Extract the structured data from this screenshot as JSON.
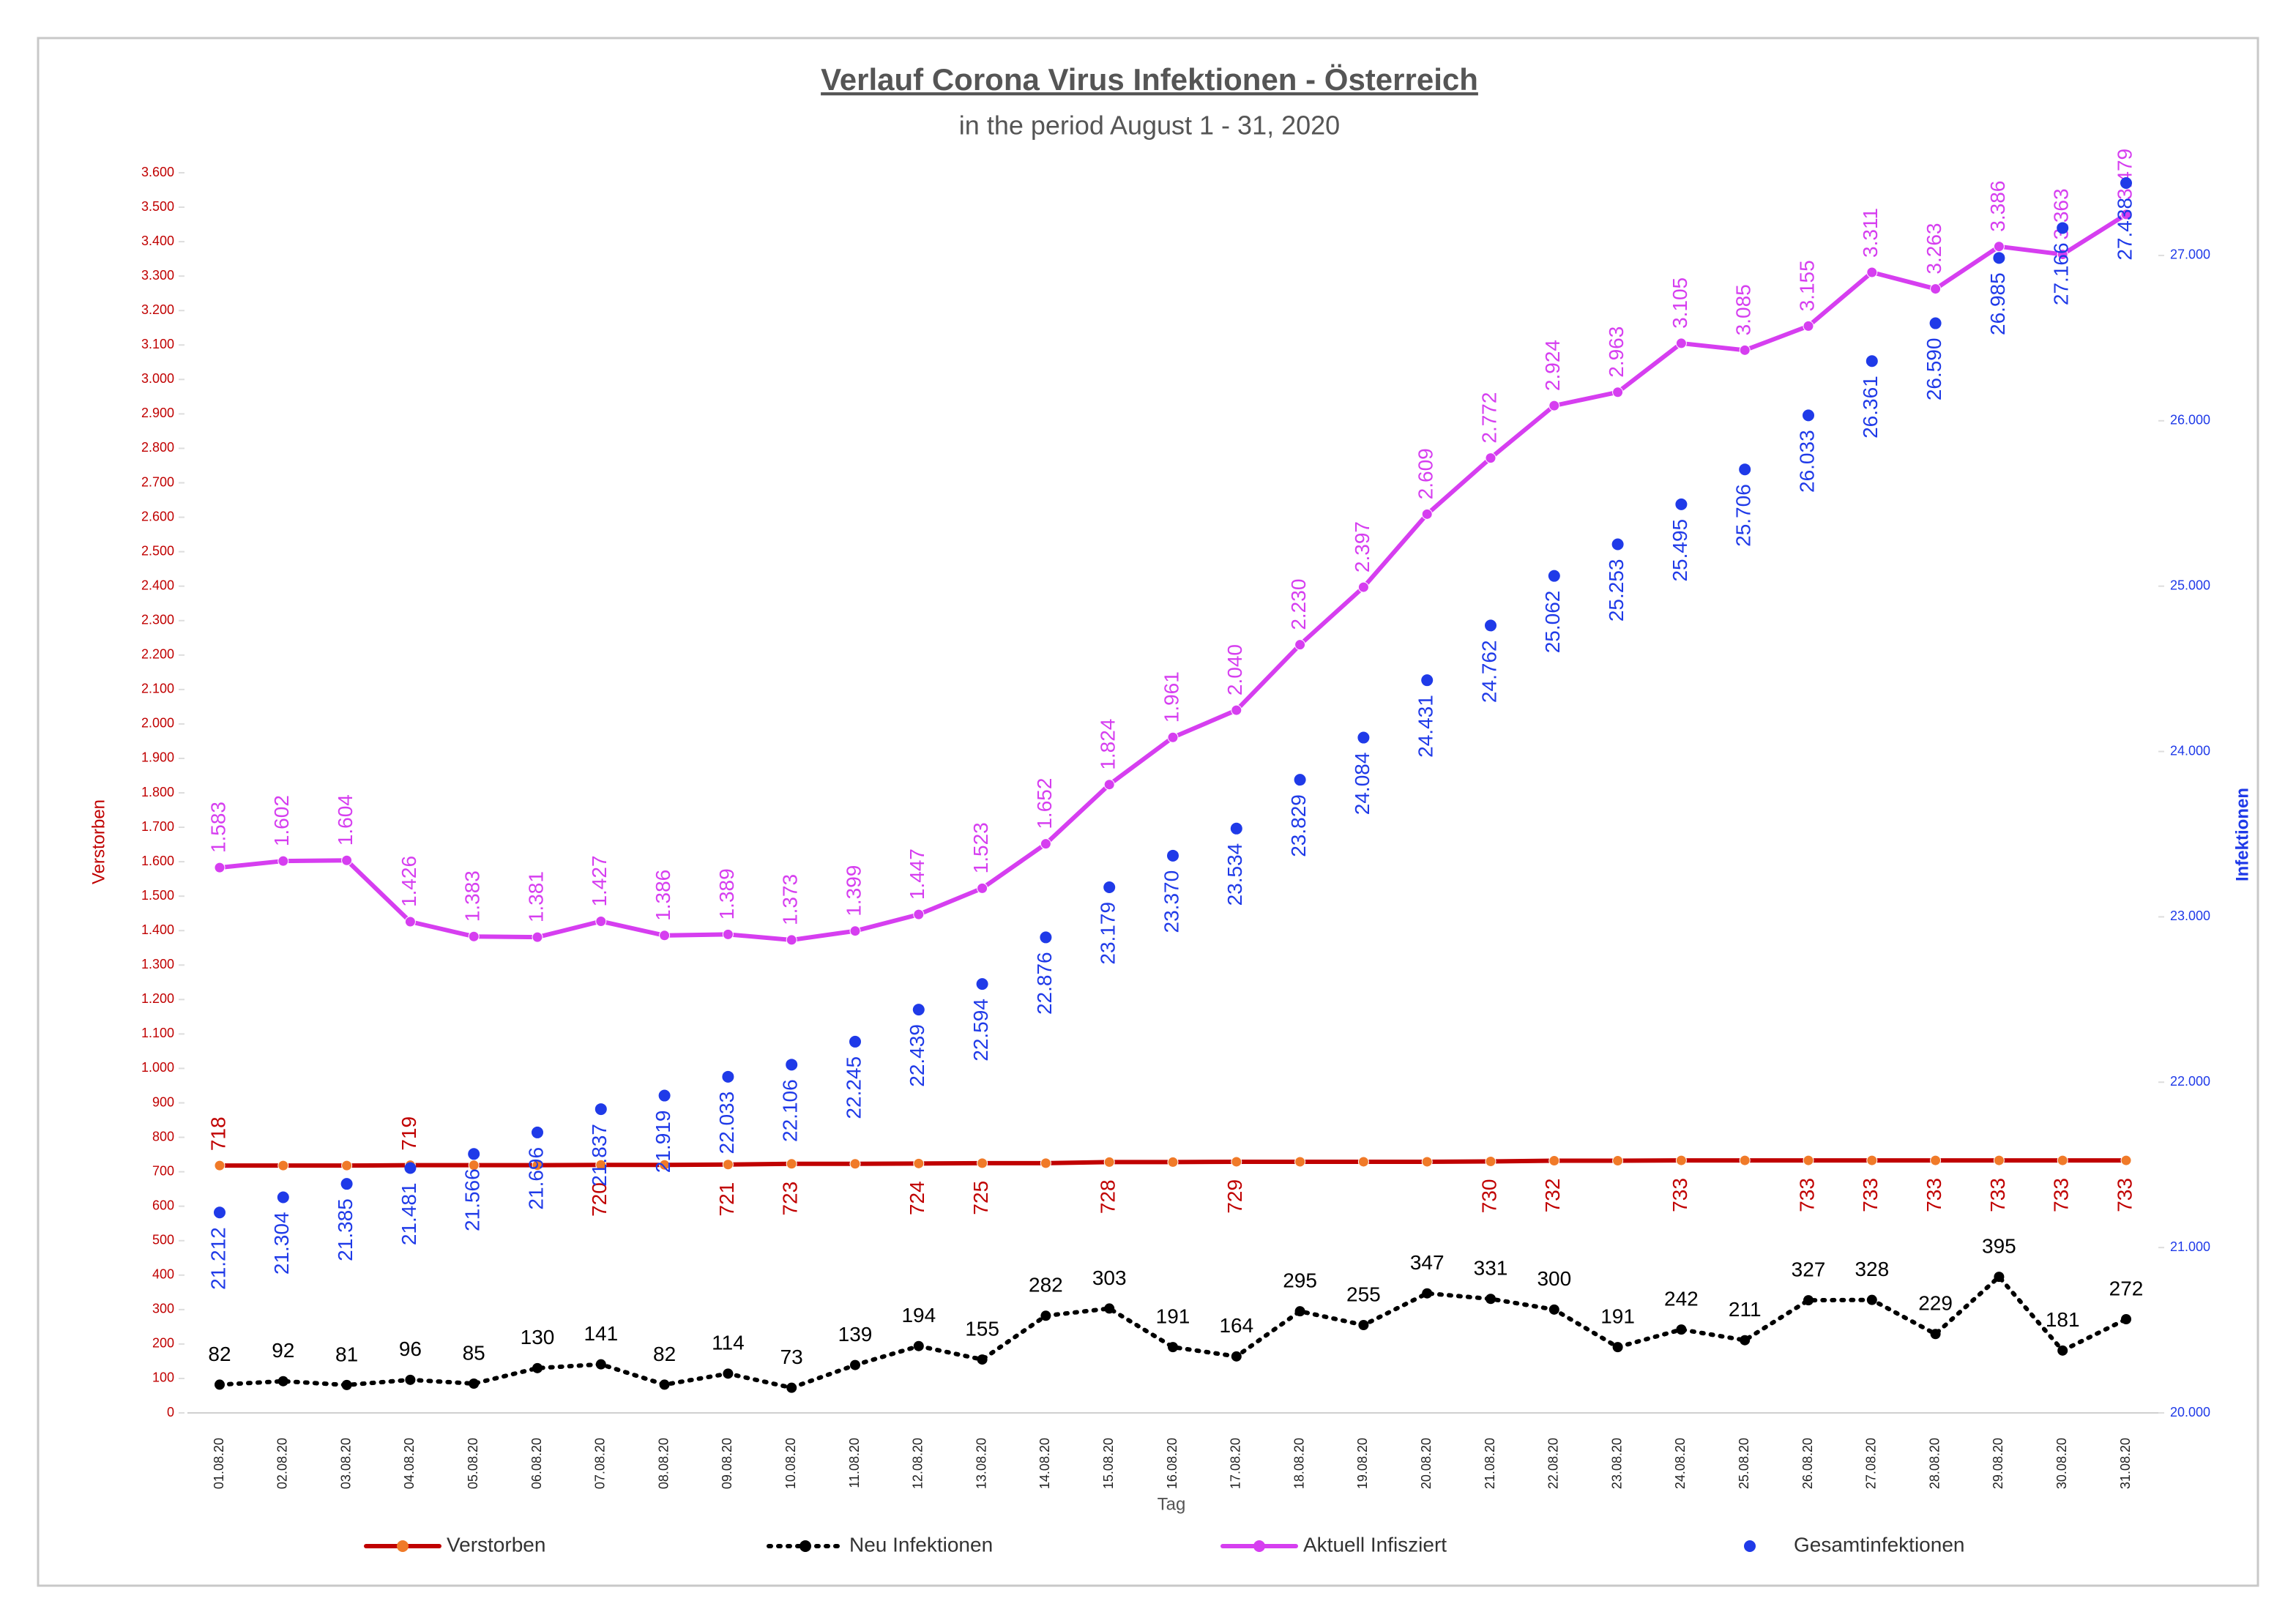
{
  "chart_data": {
    "type": "line",
    "title": "Verlauf Corona Virus Infektionen - Österreich",
    "subtitle": "in the period August 1 - 31, 2020",
    "x_label": "Tag",
    "y_label": "Verstorben",
    "y2_label": "Infektionen",
    "legend": "bottom",
    "categories": [
      "01.08.20",
      "02.08.20",
      "03.08.20",
      "04.08.20",
      "05.08.20",
      "06.08.20",
      "07.08.20",
      "08.08.20",
      "09.08.20",
      "10.08.20",
      "11.08.20",
      "12.08.20",
      "13.08.20",
      "14.08.20",
      "15.08.20",
      "16.08.20",
      "17.08.20",
      "18.08.20",
      "19.08.20",
      "20.08.20",
      "21.08.20",
      "22.08.20",
      "23.08.20",
      "24.08.20",
      "25.08.20",
      "26.08.20",
      "27.08.20",
      "28.08.20",
      "29.08.20",
      "30.08.20",
      "31.08.20"
    ],
    "ylim": [
      0,
      3600
    ],
    "yticks": [
      0,
      100,
      200,
      300,
      400,
      500,
      600,
      700,
      800,
      900,
      {
        "value": 1000,
        "label": "1.000"
      },
      {
        "value": 1100,
        "label": "1.100"
      },
      {
        "value": 1200,
        "label": "1.200"
      },
      {
        "value": 1300,
        "label": "1.300"
      },
      {
        "value": 1400,
        "label": "1.400"
      },
      {
        "value": 1500,
        "label": "1.500"
      },
      {
        "value": 1600,
        "label": "1.600"
      },
      {
        "value": 1700,
        "label": "1.700"
      },
      {
        "value": 1800,
        "label": "1.800"
      },
      {
        "value": 1900,
        "label": "1.900"
      },
      {
        "value": 2000,
        "label": "2.000"
      },
      {
        "value": 2100,
        "label": "2.100"
      },
      {
        "value": 2200,
        "label": "2.200"
      },
      {
        "value": 2300,
        "label": "2.300"
      },
      {
        "value": 2400,
        "label": "2.400"
      },
      {
        "value": 2500,
        "label": "2.500"
      },
      {
        "value": 2600,
        "label": "2.600"
      },
      {
        "value": 2700,
        "label": "2.700"
      },
      {
        "value": 2800,
        "label": "2.800"
      },
      {
        "value": 2900,
        "label": "2.900"
      },
      {
        "value": 3000,
        "label": "3.000"
      },
      {
        "value": 3100,
        "label": "3.100"
      },
      {
        "value": 3200,
        "label": "3.200"
      },
      {
        "value": 3300,
        "label": "3.300"
      },
      {
        "value": 3400,
        "label": "3.400"
      },
      {
        "value": 3500,
        "label": "3.500"
      },
      {
        "value": 3600,
        "label": "3.600"
      }
    ],
    "y2lim": [
      20000,
      27500
    ],
    "y2ticks": [
      {
        "value": 20000,
        "label": "20.000"
      },
      {
        "value": 21000,
        "label": "21.000"
      },
      {
        "value": 22000,
        "label": "22.000"
      },
      {
        "value": 23000,
        "label": "23.000"
      },
      {
        "value": 24000,
        "label": "24.000"
      },
      {
        "value": 25000,
        "label": "25.000"
      },
      {
        "value": 26000,
        "label": "26.000"
      },
      {
        "value": 27000,
        "label": "27.000"
      }
    ],
    "series": [
      {
        "name": "Verstorben",
        "color": "#c00000",
        "marker_color": "#f07a28",
        "style": "line",
        "values": [
          718,
          718,
          718,
          719,
          719,
          719,
          720,
          720,
          721,
          723,
          723,
          724,
          725,
          725,
          728,
          728,
          729,
          729,
          729,
          729,
          730,
          732,
          732,
          733,
          733,
          733,
          733,
          733,
          733,
          733,
          733
        ],
        "value_labels": [
          "718",
          null,
          null,
          "719",
          null,
          null,
          "720",
          null,
          "721",
          "723",
          null,
          "724",
          "725",
          null,
          "728",
          null,
          "729",
          null,
          null,
          null,
          "730",
          "732",
          null,
          "733",
          null,
          "733",
          "733",
          "733",
          "733",
          "733",
          "733"
        ]
      },
      {
        "name": "Neu Infektionen",
        "color": "#000000",
        "style": "dotted",
        "values": [
          82,
          92,
          81,
          96,
          85,
          130,
          141,
          82,
          114,
          73,
          139,
          194,
          155,
          282,
          303,
          191,
          164,
          295,
          255,
          347,
          331,
          300,
          191,
          242,
          211,
          327,
          328,
          229,
          395,
          181,
          272
        ]
      },
      {
        "name": "Aktuell Infisziert",
        "color": "#d63ef0",
        "style": "line",
        "values": [
          1583,
          1602,
          1604,
          1426,
          1383,
          1381,
          1427,
          1386,
          1389,
          1373,
          1399,
          1447,
          1523,
          1652,
          1824,
          1961,
          2040,
          2230,
          2397,
          2609,
          2772,
          2924,
          2963,
          3105,
          3085,
          3155,
          3311,
          3263,
          3386,
          3363,
          3479
        ],
        "value_labels": [
          "1.583",
          "1.602",
          "1.604",
          "1.426",
          "1.383",
          "1.381",
          "1.427",
          "1.386",
          "1.389",
          "1.373",
          "1.399",
          "1.447",
          "1.523",
          "1.652",
          "1.824",
          "1.961",
          "2.040",
          "2.230",
          "2.397",
          "2.609",
          "2.772",
          "2.924",
          "2.963",
          "3.105",
          "3.085",
          "3.155",
          "3.311",
          "3.263",
          "3.386",
          "3.363",
          "3.479"
        ]
      },
      {
        "name": "Gesamtinfektionen",
        "color": "#1f3ae8",
        "style": "markers",
        "axis": "y2",
        "values": [
          21212,
          21304,
          21385,
          21481,
          21566,
          21696,
          21837,
          21919,
          22033,
          22106,
          22245,
          22439,
          22594,
          22876,
          23179,
          23370,
          23534,
          23829,
          24084,
          24431,
          24762,
          25062,
          25253,
          25495,
          25706,
          26033,
          26361,
          26590,
          26985,
          27166,
          27438
        ],
        "value_labels": [
          "21.212",
          "21.304",
          "21.385",
          "21.481",
          "21.566",
          "21.696",
          "21.837",
          "21.919",
          "22.033",
          "22.106",
          "22.245",
          "22.439",
          "22.594",
          "22.876",
          "23.179",
          "23.370",
          "23.534",
          "23.829",
          "24.084",
          "24.431",
          "24.762",
          "25.062",
          "25.253",
          "25.495",
          "25.706",
          "26.033",
          "26.361",
          "26.590",
          "26.985",
          "27.166",
          "27.438"
        ]
      }
    ]
  }
}
